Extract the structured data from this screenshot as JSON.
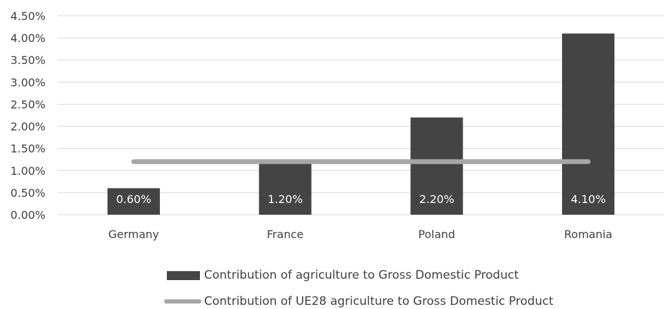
{
  "chart_data": {
    "type": "bar",
    "categories": [
      "Germany",
      "France",
      "Poland",
      "Romania"
    ],
    "series": [
      {
        "name": "Contribution of agriculture to Gross Domestic Product",
        "type": "bar",
        "values": [
          0.6,
          1.2,
          2.2,
          4.1
        ],
        "data_labels": [
          "0.60%",
          "1.20%",
          "2.20%",
          "4.10%"
        ]
      },
      {
        "name": "Contribution of UE28 agriculture to Gross Domestic Product",
        "type": "line",
        "values": [
          1.2,
          1.2,
          1.2,
          1.2
        ]
      }
    ],
    "yticks": [
      "0.00%",
      "0.50%",
      "1.00%",
      "1.50%",
      "2.00%",
      "2.50%",
      "3.00%",
      "3.50%",
      "4.00%",
      "4.50%"
    ],
    "ylim": [
      0,
      4.5
    ],
    "title": "",
    "xlabel": "",
    "ylabel": "",
    "grid": true,
    "legend_position": "bottom",
    "colors": {
      "bar": "#444444",
      "line": "#a6a6a6",
      "grid": "#d9d9d9",
      "text": "#404040",
      "data_label": "#ffffff"
    }
  }
}
